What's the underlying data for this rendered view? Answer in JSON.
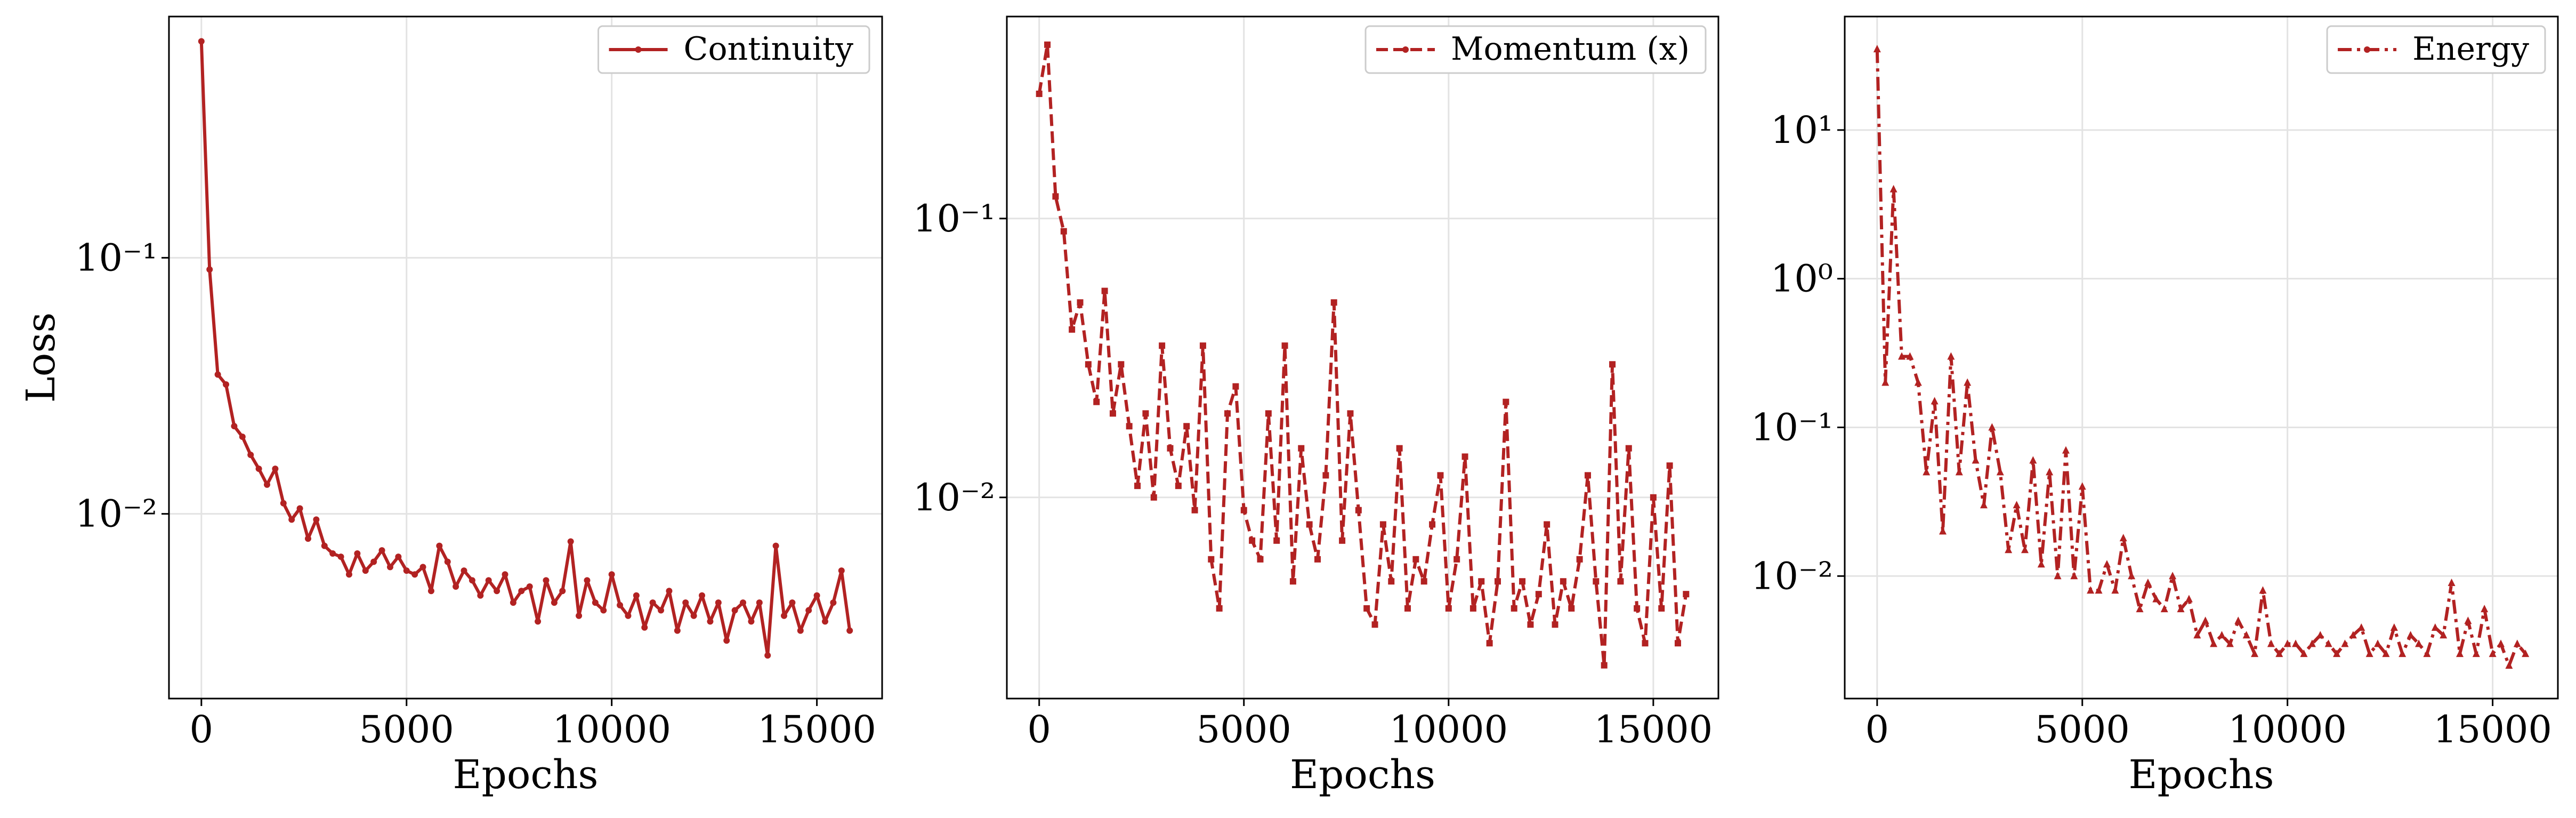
{
  "chart_data": [
    {
      "type": "line",
      "xlabel": "Epochs",
      "ylabel": "Loss",
      "yscale": "log",
      "grid": true,
      "legend": "upper right",
      "xlim": [
        -790,
        16590
      ],
      "ylim": [
        0.0019,
        0.875
      ],
      "xticks": [
        0,
        5000,
        10000,
        15000
      ],
      "yticks": [
        {
          "value": 0.01,
          "label": "10⁻²"
        },
        {
          "value": 0.1,
          "label": "10⁻¹"
        }
      ],
      "x": [
        0,
        200,
        400,
        600,
        800,
        1000,
        1200,
        1400,
        1600,
        1800,
        2000,
        2200,
        2400,
        2600,
        2800,
        3000,
        3200,
        3400,
        3600,
        3800,
        4000,
        4200,
        4400,
        4600,
        4800,
        5000,
        5200,
        5400,
        5600,
        5800,
        6000,
        6200,
        6400,
        6600,
        6800,
        7000,
        7200,
        7400,
        7600,
        7800,
        8000,
        8200,
        8400,
        8600,
        8800,
        9000,
        9200,
        9400,
        9600,
        9800,
        10000,
        10200,
        10400,
        10600,
        10800,
        11000,
        11200,
        11400,
        11600,
        11800,
        12000,
        12200,
        12400,
        12600,
        12800,
        13000,
        13200,
        13400,
        13600,
        13800,
        14000,
        14200,
        14400,
        14600,
        14800,
        15000,
        15200,
        15400,
        15600,
        15800
      ],
      "series": [
        {
          "name": "Continuity",
          "color": "#b22222",
          "linestyle": "solid",
          "marker": "circle",
          "values": [
            0.7,
            0.09,
            0.035,
            0.032,
            0.022,
            0.02,
            0.017,
            0.015,
            0.013,
            0.015,
            0.011,
            0.0095,
            0.0105,
            0.008,
            0.0095,
            0.0075,
            0.007,
            0.0068,
            0.0058,
            0.007,
            0.006,
            0.0065,
            0.0072,
            0.0062,
            0.0068,
            0.006,
            0.0058,
            0.0062,
            0.005,
            0.0075,
            0.0065,
            0.0052,
            0.006,
            0.0055,
            0.0048,
            0.0055,
            0.005,
            0.0058,
            0.0045,
            0.005,
            0.0052,
            0.0038,
            0.0055,
            0.0045,
            0.005,
            0.0078,
            0.004,
            0.0055,
            0.0045,
            0.0042,
            0.0058,
            0.0044,
            0.004,
            0.0048,
            0.0036,
            0.0045,
            0.0042,
            0.005,
            0.0035,
            0.0045,
            0.004,
            0.0048,
            0.0038,
            0.0045,
            0.0032,
            0.0042,
            0.0045,
            0.0038,
            0.0045,
            0.0028,
            0.0075,
            0.004,
            0.0045,
            0.0035,
            0.0042,
            0.0048,
            0.0038,
            0.0045,
            0.006,
            0.0035
          ]
        }
      ]
    },
    {
      "type": "line",
      "xlabel": "Epochs",
      "yscale": "log",
      "grid": true,
      "legend": "upper right",
      "xlim": [
        -790,
        16590
      ],
      "ylim": [
        0.0019,
        0.53
      ],
      "xticks": [
        0,
        5000,
        10000,
        15000
      ],
      "yticks": [
        {
          "value": 0.01,
          "label": "10⁻²"
        },
        {
          "value": 0.1,
          "label": "10⁻¹"
        }
      ],
      "x": [
        0,
        200,
        400,
        600,
        800,
        1000,
        1200,
        1400,
        1600,
        1800,
        2000,
        2200,
        2400,
        2600,
        2800,
        3000,
        3200,
        3400,
        3600,
        3800,
        4000,
        4200,
        4400,
        4600,
        4800,
        5000,
        5200,
        5400,
        5600,
        5800,
        6000,
        6200,
        6400,
        6600,
        6800,
        7000,
        7200,
        7400,
        7600,
        7800,
        8000,
        8200,
        8400,
        8600,
        8800,
        9000,
        9200,
        9400,
        9600,
        9800,
        10000,
        10200,
        10400,
        10600,
        10800,
        11000,
        11200,
        11400,
        11600,
        11800,
        12000,
        12200,
        12400,
        12600,
        12800,
        13000,
        13200,
        13400,
        13600,
        13800,
        14000,
        14200,
        14400,
        14600,
        14800,
        15000,
        15200,
        15400,
        15600,
        15800
      ],
      "series": [
        {
          "name": "Momentum (x)",
          "color": "#b22222",
          "linestyle": "dashed",
          "marker": "square",
          "values": [
            0.28,
            0.42,
            0.12,
            0.09,
            0.04,
            0.05,
            0.03,
            0.022,
            0.055,
            0.02,
            0.03,
            0.018,
            0.011,
            0.02,
            0.01,
            0.035,
            0.015,
            0.011,
            0.018,
            0.009,
            0.035,
            0.006,
            0.004,
            0.02,
            0.025,
            0.009,
            0.007,
            0.006,
            0.02,
            0.007,
            0.035,
            0.005,
            0.015,
            0.008,
            0.006,
            0.012,
            0.05,
            0.007,
            0.02,
            0.009,
            0.004,
            0.0035,
            0.008,
            0.005,
            0.015,
            0.004,
            0.006,
            0.005,
            0.008,
            0.012,
            0.004,
            0.006,
            0.014,
            0.004,
            0.005,
            0.003,
            0.005,
            0.022,
            0.004,
            0.005,
            0.0035,
            0.0045,
            0.008,
            0.0035,
            0.005,
            0.004,
            0.006,
            0.012,
            0.005,
            0.0025,
            0.03,
            0.005,
            0.015,
            0.004,
            0.003,
            0.01,
            0.004,
            0.013,
            0.003,
            0.0045
          ]
        }
      ]
    },
    {
      "type": "line",
      "xlabel": "Epochs",
      "yscale": "log",
      "grid": true,
      "legend": "upper right",
      "xlim": [
        -790,
        16590
      ],
      "ylim": [
        0.0015,
        58
      ],
      "xticks": [
        0,
        5000,
        10000,
        15000
      ],
      "yticks": [
        {
          "value": 0.01,
          "label": "10⁻²"
        },
        {
          "value": 0.1,
          "label": "10⁻¹"
        },
        {
          "value": 1,
          "label": "10⁰"
        },
        {
          "value": 10,
          "label": "10¹"
        }
      ],
      "x": [
        0,
        200,
        400,
        600,
        800,
        1000,
        1200,
        1400,
        1600,
        1800,
        2000,
        2200,
        2400,
        2600,
        2800,
        3000,
        3200,
        3400,
        3600,
        3800,
        4000,
        4200,
        4400,
        4600,
        4800,
        5000,
        5200,
        5400,
        5600,
        5800,
        6000,
        6200,
        6400,
        6600,
        6800,
        7000,
        7200,
        7400,
        7600,
        7800,
        8000,
        8200,
        8400,
        8600,
        8800,
        9000,
        9200,
        9400,
        9600,
        9800,
        10000,
        10200,
        10400,
        10600,
        10800,
        11000,
        11200,
        11400,
        11600,
        11800,
        12000,
        12200,
        12400,
        12600,
        12800,
        13000,
        13200,
        13400,
        13600,
        13800,
        14000,
        14200,
        14400,
        14600,
        14800,
        15000,
        15200,
        15400,
        15600,
        15800
      ],
      "series": [
        {
          "name": "Energy",
          "color": "#b22222",
          "linestyle": "dashdot",
          "marker": "triangle",
          "values": [
            35,
            0.2,
            4,
            0.3,
            0.3,
            0.2,
            0.05,
            0.15,
            0.02,
            0.3,
            0.05,
            0.2,
            0.06,
            0.03,
            0.1,
            0.05,
            0.015,
            0.03,
            0.015,
            0.06,
            0.012,
            0.05,
            0.01,
            0.07,
            0.01,
            0.04,
            0.008,
            0.008,
            0.012,
            0.008,
            0.018,
            0.01,
            0.006,
            0.009,
            0.007,
            0.006,
            0.01,
            0.006,
            0.007,
            0.004,
            0.005,
            0.0035,
            0.004,
            0.0035,
            0.005,
            0.004,
            0.003,
            0.008,
            0.0035,
            0.003,
            0.0035,
            0.0035,
            0.003,
            0.0035,
            0.004,
            0.0035,
            0.003,
            0.0035,
            0.004,
            0.0045,
            0.003,
            0.0035,
            0.003,
            0.0045,
            0.003,
            0.004,
            0.0035,
            0.003,
            0.0045,
            0.004,
            0.009,
            0.003,
            0.005,
            0.003,
            0.006,
            0.003,
            0.0035,
            0.0025,
            0.0035,
            0.003
          ]
        }
      ]
    }
  ]
}
